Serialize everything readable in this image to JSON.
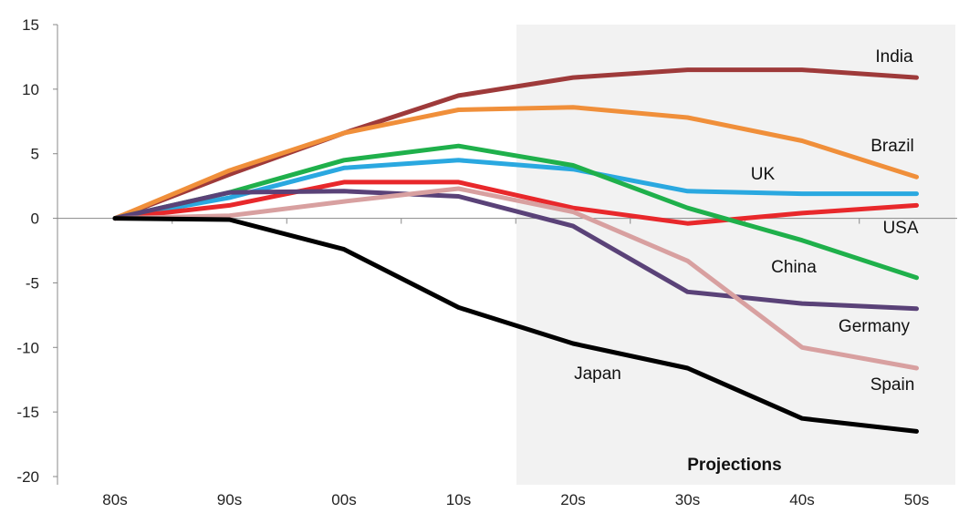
{
  "chart_data": {
    "type": "line",
    "title": "",
    "xlabel": "",
    "ylabel": "",
    "categories": [
      "80s",
      "90s",
      "00s",
      "10s",
      "20s",
      "30s",
      "40s",
      "50s"
    ],
    "ylim": [
      -20,
      15
    ],
    "yticks": [
      15,
      10,
      5,
      0,
      -5,
      -10,
      -15,
      -20
    ],
    "yticks_text": [
      "15",
      "10",
      "5",
      "0",
      "-5",
      "-10",
      "-15",
      "-20"
    ],
    "grid": false,
    "shaded_region": {
      "from_category": "20s",
      "to_category": "50s",
      "label": "Projections"
    },
    "series": [
      {
        "name": "India",
        "color": "#9e3a3a",
        "values": [
          0,
          3.4,
          6.6,
          9.5,
          10.9,
          11.5,
          11.5,
          10.9
        ]
      },
      {
        "name": "Brazil",
        "color": "#f08f3a",
        "values": [
          0,
          3.7,
          6.6,
          8.4,
          8.6,
          7.8,
          6.0,
          3.2
        ]
      },
      {
        "name": "UK",
        "color": "#2aa8e0",
        "values": [
          0,
          1.6,
          3.9,
          4.5,
          3.8,
          2.1,
          1.9,
          1.9
        ]
      },
      {
        "name": "USA",
        "color": "#e8282b",
        "values": [
          0,
          1.0,
          2.8,
          2.8,
          0.8,
          -0.4,
          0.4,
          1.0
        ]
      },
      {
        "name": "China",
        "color": "#1fb04b",
        "values": [
          0,
          2.0,
          4.5,
          5.6,
          4.1,
          0.8,
          -1.7,
          -4.6
        ]
      },
      {
        "name": "Germany",
        "color": "#5a4278",
        "values": [
          0,
          2.0,
          2.1,
          1.7,
          -0.6,
          -5.7,
          -6.6,
          -7.0
        ]
      },
      {
        "name": "Spain",
        "color": "#d8a0a0",
        "values": [
          0,
          0.2,
          1.3,
          2.3,
          0.5,
          -3.3,
          -10.0,
          -11.6
        ]
      },
      {
        "name": "Japan",
        "color": "#000000",
        "values": [
          0,
          -0.1,
          -2.4,
          -6.9,
          -9.7,
          -11.6,
          -15.5,
          -16.5
        ]
      }
    ]
  }
}
